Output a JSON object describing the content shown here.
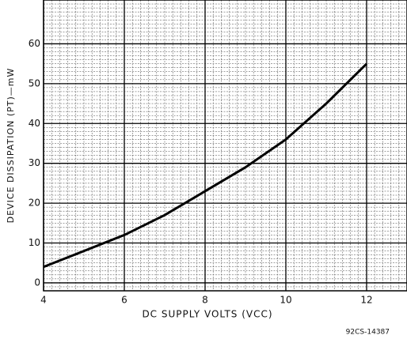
{
  "chart_data": {
    "type": "line",
    "xlabel": "DC SUPPLY VOLTS (VCC)",
    "ylabel": "DEVICE DISSIPATION (PT)—mW",
    "note": "92CS-14387",
    "x": [
      4,
      5,
      6,
      7,
      8,
      9,
      10,
      11,
      12
    ],
    "series": [
      {
        "name": "PT",
        "color": "#000000",
        "values": [
          4,
          8,
          12,
          17,
          23,
          29,
          36,
          45,
          55
        ]
      }
    ],
    "xlim": [
      4,
      13
    ],
    "ylim": [
      -2,
      71
    ],
    "xticks": [
      4,
      6,
      8,
      10,
      12
    ],
    "yticks": [
      0,
      10,
      20,
      30,
      40,
      50,
      60
    ],
    "grid": true
  }
}
